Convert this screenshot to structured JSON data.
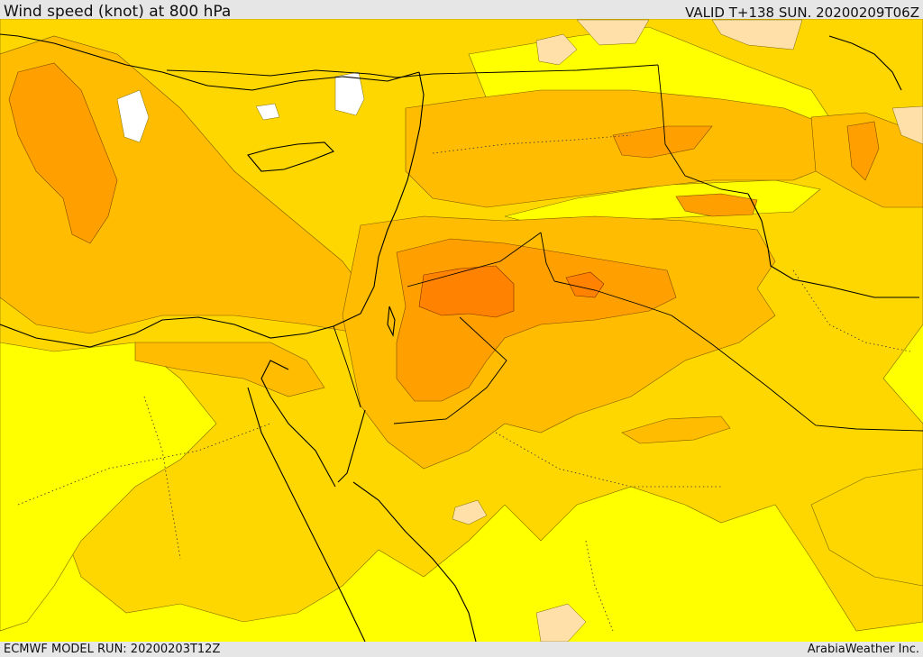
{
  "header": {
    "title": "Wind speed (knot) at 800 hPa",
    "valid": "VALID T+138 SUN. 20200209T06Z"
  },
  "footer": {
    "model_run": "ECMWF MODEL RUN: 20200203T12Z",
    "credit": "ArabiaWeather Inc."
  },
  "map": {
    "variable": "wind speed",
    "unit": "knot",
    "level": "800 hPa",
    "colors": {
      "calm": "#ffffff",
      "light": "#ffe0a8",
      "base": "#ffff00",
      "level1": "#ffd700",
      "level2": "#ffbc00",
      "level3": "#ffa000",
      "level4": "#ff8200",
      "coastline": "#000000",
      "border": "#000000"
    }
  }
}
